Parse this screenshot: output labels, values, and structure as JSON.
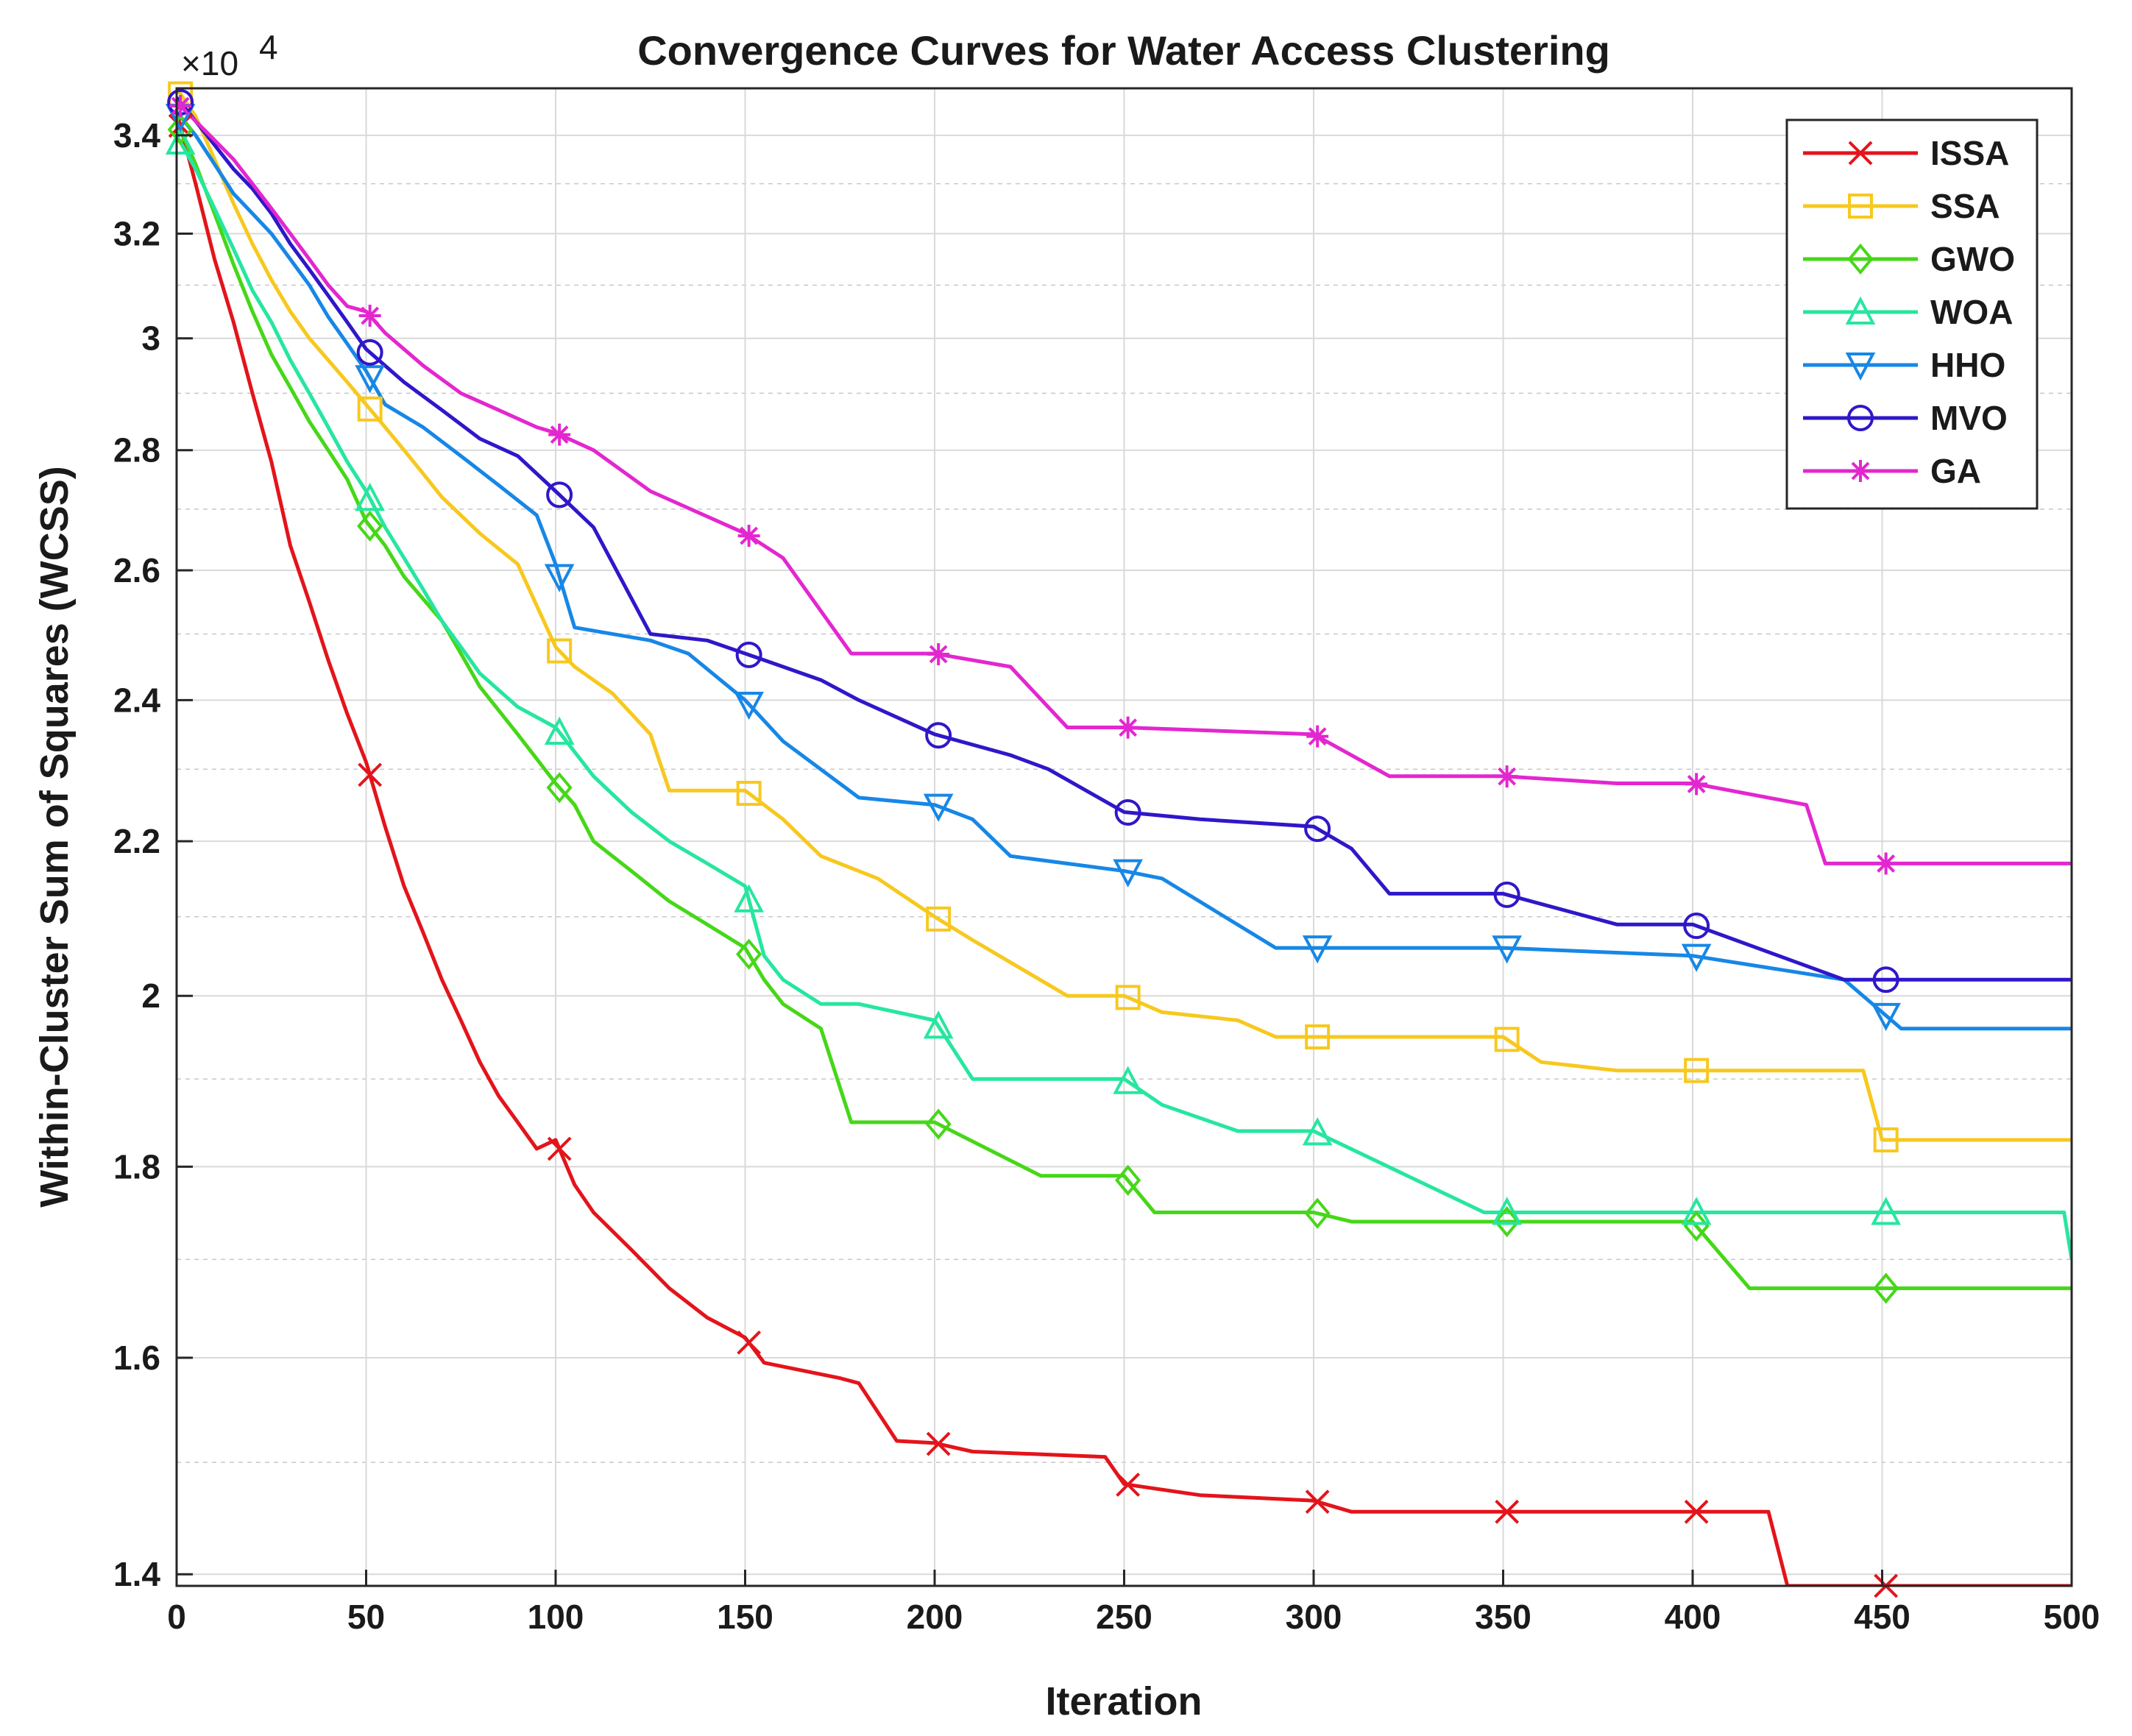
{
  "chart_data": {
    "type": "line",
    "title": "Convergence Curves for Water Access Clustering",
    "xlabel": "Iteration",
    "ylabel": "Within-Cluster Sum of Squares (WCSS)",
    "y_exponent_label": "×10",
    "y_exponent_power": "4",
    "xlim": [
      0,
      500
    ],
    "ylim": [
      13900,
      35000
    ],
    "y_scale": "log",
    "grid": true,
    "minor_grid": true,
    "legend_position": "top-right",
    "x_ticks": [
      0,
      50,
      100,
      150,
      200,
      250,
      300,
      350,
      400,
      450,
      500
    ],
    "x_tick_labels": [
      "0",
      "50",
      "100",
      "150",
      "200",
      "250",
      "300",
      "350",
      "400",
      "450",
      "500"
    ],
    "y_ticks": [
      14000,
      16000,
      18000,
      20000,
      22000,
      24000,
      26000,
      28000,
      30000,
      32000,
      34000
    ],
    "y_tick_labels": [
      "1.4",
      "1.6",
      "1.8",
      "2",
      "2.2",
      "2.4",
      "2.6",
      "2.8",
      "3",
      "3.2",
      "3.4"
    ],
    "marker_iterations": [
      1,
      51,
      101,
      151,
      201,
      251,
      301,
      351,
      401,
      451
    ],
    "series": [
      {
        "name": "ISSA",
        "color": "#e3141b",
        "marker": "x",
        "x": [
          0,
          5,
          10,
          15,
          20,
          25,
          30,
          35,
          40,
          45,
          50,
          55,
          60,
          65,
          70,
          75,
          80,
          85,
          90,
          95,
          100,
          105,
          110,
          120,
          130,
          140,
          150,
          155,
          175,
          180,
          190,
          200,
          210,
          245,
          250,
          270,
          300,
          310,
          350,
          400,
          420,
          425,
          450,
          500
        ],
        "y": [
          34500,
          33000,
          31500,
          30300,
          29000,
          27800,
          26400,
          25500,
          24600,
          23800,
          23100,
          22200,
          21400,
          20800,
          20200,
          19700,
          19200,
          18800,
          18500,
          18200,
          18300,
          17800,
          17500,
          17100,
          16700,
          16400,
          16200,
          15950,
          15800,
          15750,
          15200,
          15180,
          15100,
          15050,
          14800,
          14700,
          14650,
          14550,
          14550,
          14550,
          14550,
          13900,
          13900,
          13900
        ]
      },
      {
        "name": "SSA",
        "color": "#f7c81e",
        "marker": "square",
        "x": [
          0,
          5,
          10,
          15,
          20,
          25,
          30,
          35,
          40,
          45,
          50,
          55,
          60,
          65,
          70,
          80,
          90,
          100,
          105,
          115,
          125,
          130,
          150,
          160,
          170,
          185,
          200,
          210,
          235,
          250,
          260,
          280,
          290,
          300,
          310,
          350,
          360,
          380,
          400,
          445,
          450,
          500
        ],
        "y": [
          35000,
          34400,
          33500,
          32600,
          31800,
          31100,
          30500,
          30000,
          29600,
          29200,
          28800,
          28400,
          28000,
          27600,
          27200,
          26600,
          26100,
          24800,
          24500,
          24100,
          23500,
          22700,
          22700,
          22300,
          21800,
          21500,
          21000,
          20700,
          20000,
          20000,
          19800,
          19700,
          19500,
          19500,
          19500,
          19500,
          19200,
          19100,
          19100,
          19100,
          18300,
          18300
        ]
      },
      {
        "name": "GWO",
        "color": "#46d718",
        "marker": "diamond",
        "x": [
          0,
          5,
          10,
          15,
          20,
          25,
          30,
          35,
          40,
          45,
          50,
          55,
          60,
          70,
          75,
          80,
          90,
          100,
          105,
          110,
          120,
          130,
          140,
          150,
          155,
          160,
          170,
          178,
          200,
          228,
          250,
          258,
          300,
          310,
          350,
          400,
          415,
          450,
          500
        ],
        "y": [
          34300,
          33400,
          32400,
          31400,
          30500,
          29700,
          29100,
          28500,
          28000,
          27500,
          26800,
          26400,
          25900,
          25200,
          24700,
          24200,
          23500,
          22800,
          22500,
          22000,
          21600,
          21200,
          20900,
          20600,
          20200,
          19900,
          19600,
          18500,
          18500,
          17900,
          17900,
          17500,
          17500,
          17400,
          17400,
          17400,
          16700,
          16700,
          16700
        ]
      },
      {
        "name": "WOA",
        "color": "#26e6a0",
        "marker": "triangle-up",
        "x": [
          0,
          5,
          10,
          15,
          20,
          25,
          30,
          35,
          40,
          45,
          50,
          55,
          60,
          65,
          70,
          75,
          80,
          90,
          100,
          110,
          120,
          130,
          140,
          150,
          155,
          160,
          170,
          180,
          200,
          210,
          250,
          260,
          280,
          300,
          345,
          350,
          400,
          450,
          498,
          500
        ],
        "y": [
          34000,
          33300,
          32500,
          31700,
          30900,
          30300,
          29600,
          29000,
          28400,
          27800,
          27300,
          26700,
          26200,
          25700,
          25200,
          24800,
          24400,
          23900,
          23600,
          22900,
          22400,
          22000,
          21700,
          21400,
          20500,
          20200,
          19900,
          19900,
          19700,
          19000,
          19000,
          18700,
          18400,
          18400,
          17500,
          17500,
          17500,
          17500,
          17500,
          17000
        ]
      },
      {
        "name": "HHO",
        "color": "#1787e6",
        "marker": "triangle-down",
        "x": [
          0,
          5,
          10,
          15,
          20,
          25,
          30,
          35,
          40,
          45,
          50,
          55,
          65,
          75,
          85,
          95,
          100,
          105,
          125,
          135,
          150,
          160,
          180,
          200,
          210,
          220,
          250,
          260,
          290,
          300,
          350,
          400,
          440,
          455,
          500
        ],
        "y": [
          34500,
          34000,
          33400,
          32800,
          32400,
          32000,
          31500,
          31000,
          30400,
          29900,
          29400,
          28800,
          28400,
          27900,
          27400,
          26900,
          26100,
          25100,
          24900,
          24700,
          24000,
          23400,
          22600,
          22500,
          22300,
          21800,
          21600,
          21500,
          20600,
          20600,
          20600,
          20500,
          20200,
          19600,
          19600
        ]
      },
      {
        "name": "MVO",
        "color": "#2f17c9",
        "marker": "circle",
        "x": [
          0,
          5,
          10,
          15,
          20,
          25,
          30,
          35,
          40,
          45,
          50,
          60,
          70,
          80,
          90,
          100,
          110,
          125,
          140,
          155,
          170,
          180,
          200,
          220,
          230,
          250,
          270,
          300,
          310,
          320,
          350,
          380,
          400,
          440,
          450,
          500
        ],
        "y": [
          34800,
          34300,
          33800,
          33300,
          32900,
          32400,
          31800,
          31300,
          30800,
          30300,
          29800,
          29200,
          28700,
          28200,
          27900,
          27300,
          26700,
          25000,
          24900,
          24600,
          24300,
          24000,
          23500,
          23200,
          23000,
          22400,
          22300,
          22200,
          21900,
          21300,
          21300,
          20900,
          20900,
          20200,
          20200,
          20200
        ]
      },
      {
        "name": "GA",
        "color": "#e327cf",
        "marker": "asterisk",
        "x": [
          0,
          5,
          10,
          15,
          20,
          25,
          30,
          35,
          40,
          45,
          50,
          55,
          65,
          75,
          85,
          95,
          100,
          110,
          125,
          150,
          160,
          178,
          200,
          220,
          235,
          250,
          300,
          320,
          350,
          380,
          400,
          430,
          435,
          450,
          500
        ],
        "y": [
          34700,
          34300,
          33900,
          33500,
          33000,
          32500,
          32000,
          31500,
          31000,
          30600,
          30500,
          30100,
          29500,
          29000,
          28700,
          28400,
          28300,
          28000,
          27300,
          26600,
          26200,
          24700,
          24700,
          24500,
          23600,
          23600,
          23500,
          22900,
          22900,
          22800,
          22800,
          22500,
          21700,
          21700,
          21700
        ]
      }
    ]
  }
}
